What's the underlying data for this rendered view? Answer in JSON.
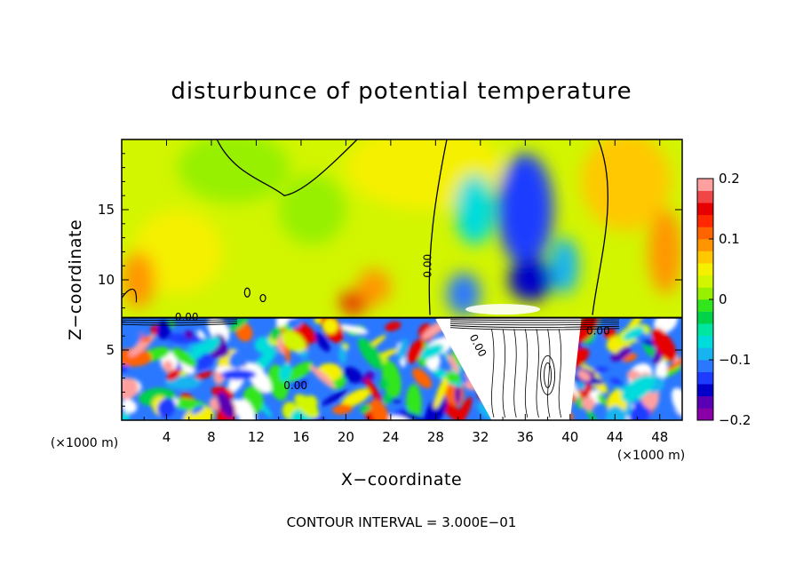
{
  "chart_data": {
    "type": "heatmap",
    "title": "disturbunce of potential temperature",
    "xlabel": "X−coordinate",
    "ylabel": "Z−coordinate",
    "x_unit_label": "(×1000 m)",
    "y_unit_label": "(×1000 m)",
    "xlim": [
      0,
      50
    ],
    "ylim": [
      0,
      20
    ],
    "x_ticks": [
      4,
      8,
      12,
      16,
      20,
      24,
      28,
      32,
      36,
      40,
      44,
      48
    ],
    "x_tick_labels": [
      "4",
      "8",
      "12",
      "16",
      "20",
      "24",
      "28",
      "32",
      "36",
      "40",
      "44",
      "48"
    ],
    "y_ticks": [
      5,
      10,
      15
    ],
    "y_tick_labels": [
      "5",
      "10",
      "15"
    ],
    "colorbar": {
      "range": [
        -0.2,
        0.2
      ],
      "tick_values": [
        0.2,
        0.1,
        0,
        -0.1,
        -0.2
      ],
      "tick_labels": [
        "0.2",
        "0.1",
        "0",
        "−0.1",
        "−0.2"
      ],
      "colors": [
        "#8a00a8",
        "#5a00b4",
        "#0000c8",
        "#1e3cff",
        "#2a78ff",
        "#18b4f0",
        "#00dcdc",
        "#00e6a0",
        "#00d24a",
        "#32e61e",
        "#96f000",
        "#d2f500",
        "#f5f000",
        "#ffc800",
        "#ff9600",
        "#ff6400",
        "#ff2800",
        "#e60000",
        "#f04646",
        "#ffa0a0"
      ]
    },
    "contour_labels": [
      "0.00",
      "0.00",
      "0.00",
      "0.00",
      "0.00"
    ],
    "footer": "CONTOUR INTERVAL = 3.000E−01",
    "blobs": [
      {
        "x": 27,
        "y": 18,
        "w": 14,
        "h": 6,
        "v": 0.05
      },
      {
        "x": 5,
        "y": 12,
        "w": 8,
        "h": 6,
        "v": 0.05
      },
      {
        "x": 10,
        "y": 18,
        "w": 10,
        "h": 5,
        "v": 0.02
      },
      {
        "x": 17,
        "y": 15,
        "w": 6,
        "h": 5,
        "v": 0.01
      },
      {
        "x": 45,
        "y": 17,
        "w": 8,
        "h": 7,
        "v": 0.07
      },
      {
        "x": 48.5,
        "y": 12,
        "w": 3,
        "h": 6,
        "v": 0.08
      },
      {
        "x": 1.5,
        "y": 10,
        "w": 3,
        "h": 4,
        "v": 0.08
      },
      {
        "x": 20.8,
        "y": 8.4,
        "w": 2.5,
        "h": 1.6,
        "v": 0.15
      },
      {
        "x": 22.5,
        "y": 9.5,
        "w": 3,
        "h": 2.5,
        "v": 0.08
      },
      {
        "x": 36,
        "y": 15,
        "w": 5,
        "h": 8,
        "v": -0.14
      },
      {
        "x": 36.5,
        "y": 10,
        "w": 4,
        "h": 3,
        "v": -0.16
      },
      {
        "x": 31.5,
        "y": 15,
        "w": 3.5,
        "h": 5,
        "v": -0.08
      },
      {
        "x": 30.5,
        "y": 9,
        "w": 3,
        "h": 3,
        "v": -0.11
      },
      {
        "x": 39.5,
        "y": 11,
        "w": 2.5,
        "h": 4,
        "v": -0.09
      }
    ],
    "base_value": 0.03,
    "boundary_height": 7.3
  }
}
